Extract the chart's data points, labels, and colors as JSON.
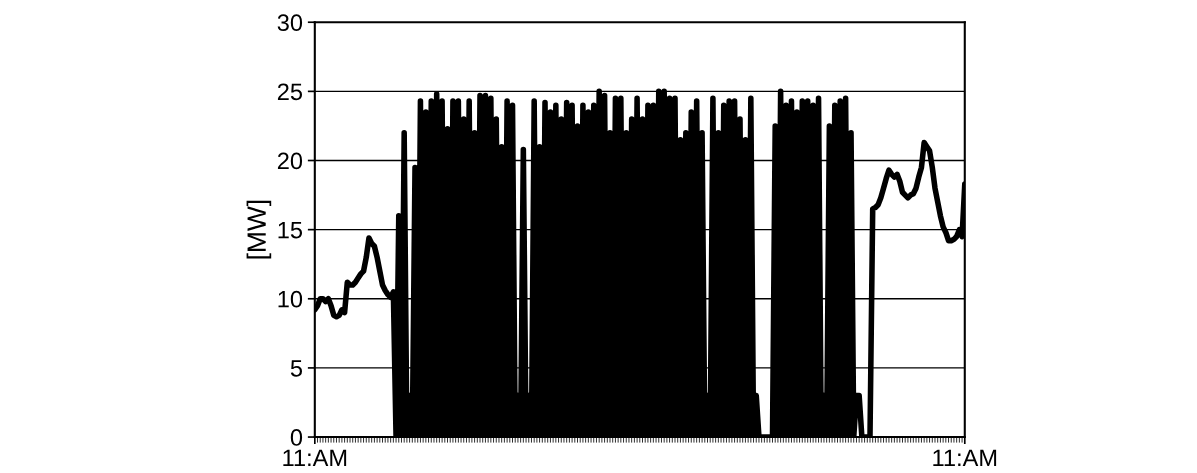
{
  "chart_data": {
    "type": "line",
    "ylabel": "[MW]",
    "ylim": [
      0,
      30
    ],
    "yticks": [
      0,
      5,
      10,
      15,
      20,
      25,
      30
    ],
    "grid": "y",
    "legend": false,
    "categories": [
      "11:AM",
      null,
      null,
      null,
      null,
      null,
      null,
      null,
      null,
      null,
      null,
      null,
      null,
      null,
      null,
      null,
      null,
      null,
      null,
      null,
      null,
      null,
      null,
      null,
      null,
      null,
      null,
      null,
      null,
      null,
      null,
      null,
      null,
      null,
      null,
      null,
      null,
      null,
      null,
      null,
      null,
      null,
      null,
      null,
      null,
      null,
      null,
      null,
      null,
      null,
      null,
      null,
      null,
      null,
      null,
      null,
      null,
      null,
      null,
      null,
      null,
      null,
      null,
      null,
      null,
      null,
      null,
      null,
      null,
      null,
      null,
      null,
      null,
      null,
      null,
      null,
      null,
      null,
      null,
      null,
      null,
      null,
      null,
      null,
      null,
      null,
      null,
      null,
      null,
      null,
      null,
      null,
      null,
      null,
      null,
      null,
      null,
      null,
      null,
      null,
      null,
      null,
      null,
      null,
      null,
      null,
      null,
      null,
      null,
      null,
      null,
      null,
      null,
      null,
      null,
      null,
      null,
      null,
      null,
      null,
      null,
      null,
      null,
      null,
      null,
      null,
      null,
      null,
      null,
      null,
      null,
      null,
      null,
      null,
      null,
      null,
      null,
      null,
      null,
      null,
      null,
      null,
      null,
      null,
      null,
      null,
      null,
      null,
      null,
      null,
      null,
      null,
      null,
      null,
      null,
      null,
      null,
      null,
      null,
      null,
      null,
      null,
      null,
      null,
      null,
      null,
      null,
      null,
      null,
      null,
      null,
      null,
      null,
      null,
      null,
      null,
      null,
      null,
      null,
      null,
      null,
      null,
      null,
      null,
      null,
      null,
      null,
      null,
      null,
      null,
      null,
      null,
      null,
      null,
      null,
      null,
      null,
      null,
      null,
      null,
      null,
      null,
      null,
      null,
      null,
      null,
      null,
      null,
      null,
      null,
      null,
      null,
      null,
      null,
      null,
      null,
      null,
      null,
      null,
      null,
      null,
      null,
      null,
      null,
      null,
      null,
      null,
      null,
      null,
      null,
      null,
      null,
      null,
      null,
      null,
      null,
      null,
      null,
      null,
      null,
      "11:AM"
    ],
    "series": [
      {
        "color": "#000000",
        "values": [
          9.2,
          9.5,
          10,
          10,
          9.8,
          10,
          9.5,
          8.8,
          8.7,
          8.8,
          9.2,
          9,
          11.2,
          11,
          11,
          11.2,
          11.5,
          11.8,
          12,
          13,
          14.4,
          14,
          13.8,
          13,
          12,
          11,
          10.6,
          10.3,
          10.1,
          10.5,
          0,
          16,
          0,
          22,
          0,
          3,
          0,
          19.5,
          0,
          24.3,
          0,
          23.5,
          0,
          24.3,
          0,
          24.8,
          0,
          24.3,
          0,
          22.3,
          0,
          24.3,
          0,
          24.3,
          0,
          23,
          0,
          24.3,
          0,
          22,
          0,
          24.7,
          0,
          24.7,
          0,
          24.5,
          0,
          23,
          0,
          21,
          0,
          24.3,
          0,
          24,
          0,
          3,
          0,
          20.8,
          0,
          3,
          0,
          24.3,
          0,
          21,
          0,
          24.2,
          0,
          23.5,
          0,
          24,
          0,
          23,
          0,
          24.2,
          0,
          24,
          0,
          22.5,
          0,
          24,
          0,
          23.5,
          0,
          24,
          0,
          25,
          0,
          24.7,
          0,
          22,
          0,
          24.5,
          0,
          24.5,
          0,
          22,
          0,
          23,
          0,
          24.5,
          0,
          23,
          0,
          24,
          0,
          24,
          0,
          25,
          0,
          25,
          0,
          24.5,
          0,
          24.5,
          0,
          21.5,
          0,
          22,
          0,
          23.5,
          0,
          24.3,
          0,
          22,
          0,
          3,
          0,
          24.5,
          0,
          22,
          0,
          24,
          0,
          24.3,
          0,
          24.3,
          0,
          23,
          0,
          21.5,
          0,
          24.5,
          0,
          3,
          0,
          0,
          0,
          0,
          0,
          0,
          22.5,
          0,
          25,
          0,
          24,
          0,
          24.3,
          0,
          23.5,
          0,
          24.3,
          0,
          24.3,
          0,
          24,
          0,
          24.5,
          0,
          3,
          0,
          22.5,
          0,
          24,
          0,
          24.3,
          0,
          24.5,
          0,
          22,
          0,
          3,
          3,
          0,
          0,
          0,
          0,
          16.5,
          16.6,
          16.8,
          17.3,
          18,
          18.7,
          19.3,
          19,
          18.8,
          19,
          18.5,
          17.7,
          17.5,
          17.3,
          17.5,
          17.6,
          18,
          18.8,
          19.5,
          21.3,
          21,
          20.7,
          19.5,
          18,
          17,
          16,
          15.2,
          14.8,
          14.2,
          14.2,
          14.3,
          14.5,
          15,
          14.5,
          18.3
        ]
      }
    ]
  }
}
